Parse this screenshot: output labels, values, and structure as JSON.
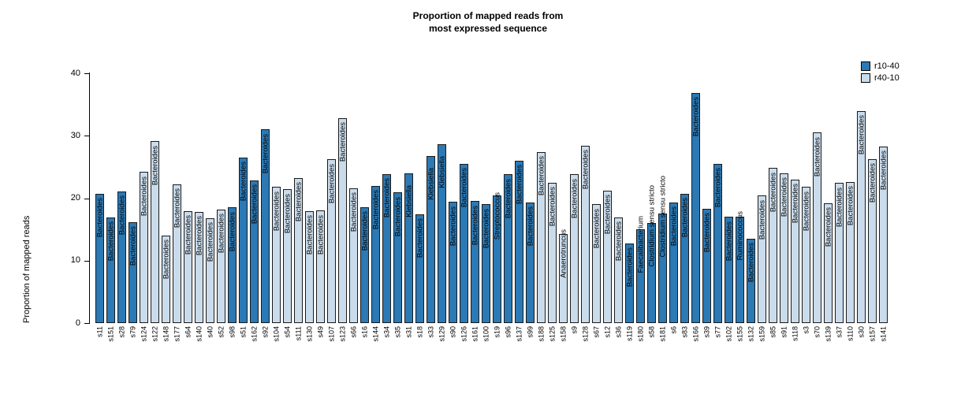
{
  "title": {
    "line1": "Proportion of mapped reads from",
    "line2": "most expressed sequence"
  },
  "y_axis": {
    "label": "Proportion of mapped reads",
    "ticks": [
      0,
      10,
      20,
      30,
      40
    ]
  },
  "legend": {
    "items": [
      {
        "label": "r10-40",
        "color": "#2B79B5"
      },
      {
        "label": "r40-10",
        "color": "#CADCEC"
      }
    ]
  },
  "chart_data": {
    "type": "bar",
    "title": "Proportion of mapped reads from most expressed sequence",
    "xlabel": "",
    "ylabel": "Proportion of mapped reads",
    "ylim": [
      0,
      40
    ],
    "grid": false,
    "legend_position": "top-right",
    "groups": {
      "r10-40": "#2B79B5",
      "r40-10": "#CADCEC"
    },
    "bars": [
      {
        "sample": "s11",
        "value": 20.7,
        "group": "r10-40",
        "taxon": "Bacteroides"
      },
      {
        "sample": "s151",
        "value": 16.9,
        "group": "r10-40",
        "taxon": "Bacteroides"
      },
      {
        "sample": "s28",
        "value": 21.1,
        "group": "r10-40",
        "taxon": "Bacteroides"
      },
      {
        "sample": "s79",
        "value": 16.2,
        "group": "r10-40",
        "taxon": "Bacteroides"
      },
      {
        "sample": "s124",
        "value": 24.2,
        "group": "r40-10",
        "taxon": "Bacteroides"
      },
      {
        "sample": "s122",
        "value": 29.1,
        "group": "r40-10",
        "taxon": "Bacteroides"
      },
      {
        "sample": "s148",
        "value": 14.0,
        "group": "r40-10",
        "taxon": "Bacteroides"
      },
      {
        "sample": "s177",
        "value": 22.2,
        "group": "r40-10",
        "taxon": "Bacteroides"
      },
      {
        "sample": "s64",
        "value": 17.9,
        "group": "r40-10",
        "taxon": "Bacteroides"
      },
      {
        "sample": "s140",
        "value": 17.8,
        "group": "r40-10",
        "taxon": "Bacteroides"
      },
      {
        "sample": "s40",
        "value": 16.8,
        "group": "r40-10",
        "taxon": "Bacteroides"
      },
      {
        "sample": "s52",
        "value": 18.2,
        "group": "r40-10",
        "taxon": "Bacteroides"
      },
      {
        "sample": "s98",
        "value": 18.5,
        "group": "r10-40",
        "taxon": "Bacteroides"
      },
      {
        "sample": "s51",
        "value": 26.5,
        "group": "r10-40",
        "taxon": "Bacteroides"
      },
      {
        "sample": "s162",
        "value": 22.9,
        "group": "r10-40",
        "taxon": "Bacteroides"
      },
      {
        "sample": "s92",
        "value": 31.0,
        "group": "r10-40",
        "taxon": "Bacteroides"
      },
      {
        "sample": "s104",
        "value": 21.8,
        "group": "r40-10",
        "taxon": "Bacteroides"
      },
      {
        "sample": "s54",
        "value": 21.4,
        "group": "r40-10",
        "taxon": "Bacteroides"
      },
      {
        "sample": "s111",
        "value": 23.2,
        "group": "r40-10",
        "taxon": "Bacteroides"
      },
      {
        "sample": "s130",
        "value": 17.9,
        "group": "r40-10",
        "taxon": "Bacteroides"
      },
      {
        "sample": "s49",
        "value": 18.0,
        "group": "r40-10",
        "taxon": "Bacteroides"
      },
      {
        "sample": "s107",
        "value": 26.2,
        "group": "r40-10",
        "taxon": "Bacteroides"
      },
      {
        "sample": "s123",
        "value": 32.8,
        "group": "r40-10",
        "taxon": "Bacteroides"
      },
      {
        "sample": "s66",
        "value": 21.6,
        "group": "r40-10",
        "taxon": "Bacteroides"
      },
      {
        "sample": "s16",
        "value": 18.6,
        "group": "r10-40",
        "taxon": "Bacteroides"
      },
      {
        "sample": "s144",
        "value": 22.0,
        "group": "r10-40",
        "taxon": "Bacteroides"
      },
      {
        "sample": "s34",
        "value": 23.9,
        "group": "r10-40",
        "taxon": "Bacteroides"
      },
      {
        "sample": "s35",
        "value": 20.9,
        "group": "r10-40",
        "taxon": "Bacteroides"
      },
      {
        "sample": "s31",
        "value": 24.0,
        "group": "r10-40",
        "taxon": "Klebsiella"
      },
      {
        "sample": "s18",
        "value": 17.4,
        "group": "r10-40",
        "taxon": "Bacteroides"
      },
      {
        "sample": "s33",
        "value": 26.7,
        "group": "r10-40",
        "taxon": "Klebsiella"
      },
      {
        "sample": "s129",
        "value": 28.6,
        "group": "r10-40",
        "taxon": "Klebsiella"
      },
      {
        "sample": "s90",
        "value": 19.4,
        "group": "r10-40",
        "taxon": "Bacteroides"
      },
      {
        "sample": "s126",
        "value": 25.5,
        "group": "r10-40",
        "taxon": "Bacteroides"
      },
      {
        "sample": "s161",
        "value": 19.5,
        "group": "r10-40",
        "taxon": "Bacteroides"
      },
      {
        "sample": "s100",
        "value": 19.0,
        "group": "r10-40",
        "taxon": "Bacteroides"
      },
      {
        "sample": "s19",
        "value": 20.4,
        "group": "r10-40",
        "taxon": "Streptococcus"
      },
      {
        "sample": "s96",
        "value": 23.8,
        "group": "r10-40",
        "taxon": "Bacteroides"
      },
      {
        "sample": "s137",
        "value": 26.0,
        "group": "r10-40",
        "taxon": "Bacteroides"
      },
      {
        "sample": "s99",
        "value": 19.3,
        "group": "r10-40",
        "taxon": "Bacteroides"
      },
      {
        "sample": "s188",
        "value": 27.4,
        "group": "r40-10",
        "taxon": "Bacteroides"
      },
      {
        "sample": "s125",
        "value": 22.5,
        "group": "r40-10",
        "taxon": "Bacteroides"
      },
      {
        "sample": "s158",
        "value": 14.2,
        "group": "r40-10",
        "taxon": "Anaerotruncus"
      },
      {
        "sample": "s9",
        "value": 23.8,
        "group": "r40-10",
        "taxon": "Bacteroides"
      },
      {
        "sample": "s128",
        "value": 28.4,
        "group": "r40-10",
        "taxon": "Bacteroides"
      },
      {
        "sample": "s67",
        "value": 19.0,
        "group": "r40-10",
        "taxon": "Bacteroides"
      },
      {
        "sample": "s12",
        "value": 21.2,
        "group": "r40-10",
        "taxon": "Bacteroides"
      },
      {
        "sample": "s36",
        "value": 16.9,
        "group": "r40-10",
        "taxon": "Bacteroides"
      },
      {
        "sample": "s119",
        "value": 12.8,
        "group": "r10-40",
        "taxon": "Bacteroides"
      },
      {
        "sample": "s180",
        "value": 15.0,
        "group": "r10-40",
        "taxon": "Faecalibacterium"
      },
      {
        "sample": "s58",
        "value": 16.0,
        "group": "r10-40",
        "taxon": "Clostridium sensu stricto"
      },
      {
        "sample": "s181",
        "value": 17.5,
        "group": "r10-40",
        "taxon": "Clostridium sensu stricto"
      },
      {
        "sample": "s6",
        "value": 19.3,
        "group": "r10-40",
        "taxon": "Bacteroides"
      },
      {
        "sample": "s83",
        "value": 20.7,
        "group": "r10-40",
        "taxon": "Bacteroides"
      },
      {
        "sample": "s166",
        "value": 36.9,
        "group": "r10-40",
        "taxon": "Bacteroides"
      },
      {
        "sample": "s39",
        "value": 18.3,
        "group": "r10-40",
        "taxon": "Bacteroides"
      },
      {
        "sample": "s77",
        "value": 25.5,
        "group": "r10-40",
        "taxon": "Bacteroides"
      },
      {
        "sample": "s102",
        "value": 17.0,
        "group": "r10-40",
        "taxon": "Bacteroides"
      },
      {
        "sample": "s155",
        "value": 17.0,
        "group": "r10-40",
        "taxon": "Ruminococcus"
      },
      {
        "sample": "s132",
        "value": 13.5,
        "group": "r10-40",
        "taxon": "Bacteroides"
      },
      {
        "sample": "s159",
        "value": 20.4,
        "group": "r40-10",
        "taxon": "Bacteroides"
      },
      {
        "sample": "s85",
        "value": 24.8,
        "group": "r40-10",
        "taxon": "Bacteroides"
      },
      {
        "sample": "s91",
        "value": 24.0,
        "group": "r40-10",
        "taxon": "Bacteroides"
      },
      {
        "sample": "s118",
        "value": 23.0,
        "group": "r40-10",
        "taxon": "Bacteroides"
      },
      {
        "sample": "s3",
        "value": 21.8,
        "group": "r40-10",
        "taxon": "Bacteroides"
      },
      {
        "sample": "s70",
        "value": 30.5,
        "group": "r40-10",
        "taxon": "Bacteroides"
      },
      {
        "sample": "s139",
        "value": 19.2,
        "group": "r40-10",
        "taxon": "Bacteroides"
      },
      {
        "sample": "s37",
        "value": 22.4,
        "group": "r40-10",
        "taxon": "Bacteroides"
      },
      {
        "sample": "s110",
        "value": 22.6,
        "group": "r40-10",
        "taxon": "Bacteroides"
      },
      {
        "sample": "s30",
        "value": 34.0,
        "group": "r40-10",
        "taxon": "Bacteroides"
      },
      {
        "sample": "s157",
        "value": 26.3,
        "group": "r40-10",
        "taxon": "Bacteroides"
      },
      {
        "sample": "s141",
        "value": 28.3,
        "group": "r40-10",
        "taxon": "Bacteroides"
      }
    ]
  }
}
